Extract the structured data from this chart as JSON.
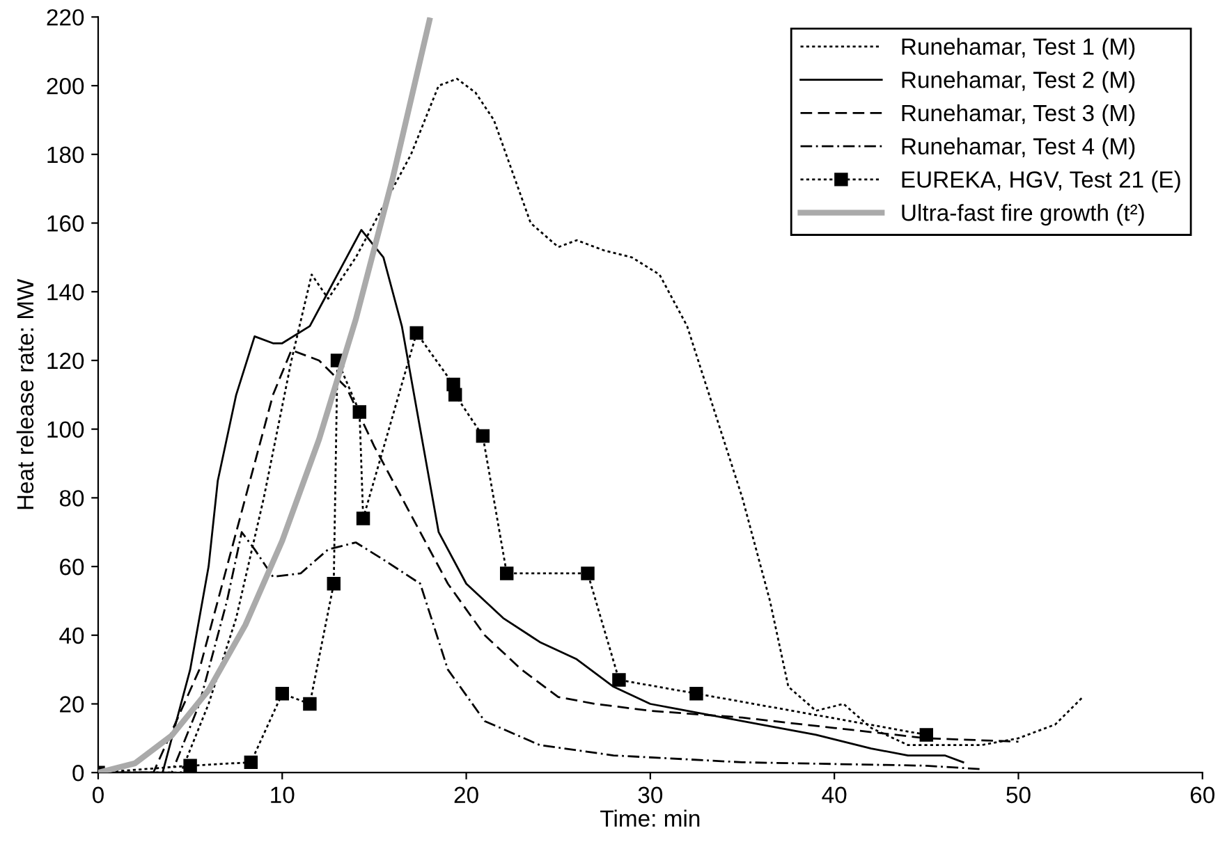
{
  "chart_data": {
    "type": "line",
    "xlabel": "Time: min",
    "ylabel": "Heat release rate: MW",
    "xlim": [
      0,
      60
    ],
    "ylim": [
      0,
      220
    ],
    "xticks": [
      0,
      10,
      20,
      30,
      40,
      50,
      60
    ],
    "yticks": [
      0,
      20,
      40,
      60,
      80,
      100,
      120,
      140,
      160,
      180,
      200,
      220
    ],
    "grid": false,
    "legend": "top right",
    "series": [
      {
        "name": "Runehamar, Test 1 (M)",
        "color": "#000000",
        "line_style": "dotted",
        "marker": "none",
        "x": [
          0,
          4.5,
          6,
          7.5,
          9,
          10.5,
          11.6,
          12.5,
          14,
          16,
          17,
          18.5,
          19.5,
          20.5,
          21.5,
          22.5,
          23.5,
          25,
          26,
          27.5,
          29,
          30.5,
          32,
          33.5,
          35,
          36.5,
          37.5,
          39,
          40.5,
          42,
          44,
          48,
          50,
          52,
          53.5
        ],
        "values": [
          0,
          0,
          20,
          45,
          80,
          120,
          145,
          138,
          150,
          170,
          180,
          200,
          202,
          198,
          190,
          175,
          160,
          153,
          155,
          152,
          150,
          145,
          130,
          105,
          80,
          50,
          25,
          18,
          20,
          13,
          8,
          8,
          10,
          14,
          22
        ]
      },
      {
        "name": "Runehamar, Test 2 (M)",
        "color": "#000000",
        "line_style": "solid",
        "marker": "none",
        "x": [
          0,
          3.5,
          5,
          6,
          6.5,
          7.5,
          8.5,
          9.5,
          10,
          11.5,
          12.5,
          13.5,
          14.3,
          15.5,
          16.5,
          17.5,
          18.5,
          20,
          22,
          24,
          26,
          28,
          30,
          33,
          36,
          39,
          42,
          44,
          46,
          47
        ],
        "values": [
          0,
          0,
          30,
          60,
          85,
          110,
          127,
          125,
          125,
          130,
          140,
          150,
          158,
          150,
          130,
          100,
          70,
          55,
          45,
          38,
          33,
          25,
          20,
          17,
          14,
          11,
          7,
          5,
          5,
          3
        ]
      },
      {
        "name": "Runehamar, Test 3 (M)",
        "color": "#000000",
        "line_style": "dashed",
        "marker": "none",
        "x": [
          0,
          3,
          5.5,
          7,
          8.5,
          9.5,
          10.5,
          12,
          13.5,
          15,
          17,
          19,
          21,
          23,
          25,
          27,
          30,
          35,
          40,
          45,
          50
        ],
        "values": [
          0,
          0,
          30,
          60,
          90,
          110,
          123,
          120,
          112,
          95,
          75,
          55,
          40,
          30,
          22,
          20,
          18,
          16,
          13,
          10,
          9
        ]
      },
      {
        "name": "Runehamar, Test 4 (M)",
        "color": "#000000",
        "line_style": "dashdot",
        "marker": "none",
        "x": [
          0,
          4,
          5.5,
          7,
          7.8,
          8.5,
          9.5,
          11,
          12.5,
          14,
          15.5,
          17.5,
          19,
          21,
          24,
          28,
          35,
          45,
          48
        ],
        "values": [
          0,
          0,
          20,
          50,
          70,
          65,
          57,
          58,
          65,
          67,
          62,
          55,
          30,
          15,
          8,
          5,
          3,
          2,
          1
        ]
      },
      {
        "name": "EUREKA, HGV, Test 21 (E)",
        "color": "#000000",
        "line_style": "dotted",
        "marker": "square",
        "x": [
          0,
          5,
          8.3,
          10,
          11.5,
          12.8,
          13,
          14.2,
          14.4,
          17.3,
          19.3,
          19.4,
          20.9,
          22.2,
          26.6,
          28.3,
          32.5,
          45
        ],
        "values": [
          0,
          2,
          3,
          23,
          20,
          55,
          120,
          105,
          74,
          128,
          113,
          110,
          98,
          58,
          58,
          27,
          23,
          11
        ]
      },
      {
        "name": "Ultra-fast fire growth (t²)",
        "color": "#aaaaaa",
        "line_style": "solid",
        "marker": "none",
        "x": [
          0,
          2,
          4,
          6,
          8,
          10,
          12,
          14,
          16,
          18
        ],
        "values": [
          0,
          2.7,
          10.8,
          24,
          43,
          67.5,
          97,
          132,
          173,
          219
        ]
      }
    ]
  }
}
